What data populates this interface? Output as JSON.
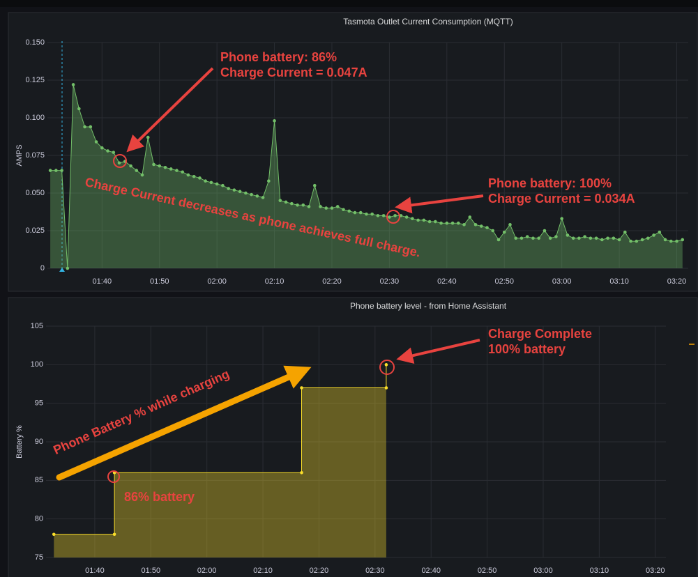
{
  "chart_data": [
    {
      "type": "line",
      "title": "Tasmota Outlet Current Consumption (MQTT)",
      "ylabel": "AMPS",
      "x": [
        91,
        92,
        93,
        94,
        95,
        96,
        97,
        98,
        99,
        100,
        101,
        102,
        103,
        104,
        105,
        106,
        107,
        108,
        109,
        110,
        111,
        112,
        113,
        114,
        115,
        116,
        117,
        118,
        119,
        120,
        121,
        122,
        123,
        124,
        125,
        126,
        127,
        128,
        129,
        130,
        131,
        132,
        133,
        134,
        135,
        136,
        137,
        138,
        139,
        140,
        141,
        142,
        143,
        144,
        145,
        146,
        147,
        148,
        149,
        150,
        151,
        152,
        153,
        154,
        155,
        156,
        157,
        158,
        159,
        160,
        161,
        162,
        163,
        164,
        165,
        166,
        167,
        168,
        169,
        170,
        171,
        172,
        173,
        174,
        175,
        176,
        177,
        178,
        179,
        180,
        181,
        182,
        183,
        184,
        185,
        186,
        187,
        188,
        189,
        190,
        191,
        192,
        193,
        194,
        195,
        196,
        197,
        198,
        199,
        200,
        201
      ],
      "values": [
        0.065,
        0.065,
        0.065,
        0,
        0.122,
        0.106,
        0.094,
        0.094,
        0.084,
        0.08,
        0.078,
        0.077,
        0.07,
        0.071,
        0.068,
        0.065,
        0.062,
        0.087,
        0.069,
        0.068,
        0.067,
        0.066,
        0.065,
        0.064,
        0.062,
        0.061,
        0.06,
        0.058,
        0.057,
        0.056,
        0.055,
        0.053,
        0.052,
        0.051,
        0.05,
        0.049,
        0.048,
        0.047,
        0.058,
        0.098,
        0.045,
        0.044,
        0.043,
        0.042,
        0.042,
        0.041,
        0.055,
        0.041,
        0.04,
        0.04,
        0.041,
        0.039,
        0.038,
        0.037,
        0.037,
        0.036,
        0.036,
        0.035,
        0.035,
        0.034,
        0.035,
        0.035,
        0.034,
        0.033,
        0.032,
        0.032,
        0.031,
        0.031,
        0.03,
        0.03,
        0.03,
        0.03,
        0.029,
        0.034,
        0.029,
        0.028,
        0.027,
        0.025,
        0.019,
        0.024,
        0.029,
        0.02,
        0.02,
        0.021,
        0.02,
        0.02,
        0.025,
        0.02,
        0.021,
        0.033,
        0.022,
        0.02,
        0.02,
        0.021,
        0.02,
        0.02,
        0.019,
        0.02,
        0.02,
        0.019,
        0.024,
        0.018,
        0.018,
        0.019,
        0.02,
        0.022,
        0.024,
        0.019,
        0.018,
        0.018,
        0.019
      ],
      "color": "#73bf69",
      "area": true,
      "grid": true,
      "xlim": [
        90.5,
        202
      ],
      "xticks": [
        {
          "value": 100,
          "label": "01:40"
        },
        {
          "value": 110,
          "label": "01:50"
        },
        {
          "value": 120,
          "label": "02:00"
        },
        {
          "value": 130,
          "label": "02:10"
        },
        {
          "value": 140,
          "label": "02:20"
        },
        {
          "value": 150,
          "label": "02:30"
        },
        {
          "value": 160,
          "label": "02:40"
        },
        {
          "value": 170,
          "label": "02:50"
        },
        {
          "value": 180,
          "label": "03:00"
        },
        {
          "value": 190,
          "label": "03:10"
        },
        {
          "value": 200,
          "label": "03:20"
        }
      ],
      "ylim": [
        0,
        0.15
      ],
      "yticks": [
        0,
        0.025,
        {
          "value": 0.05,
          "label": "0.050"
        },
        0.075,
        {
          "value": 0.1,
          "label": "0.100"
        },
        0.125,
        {
          "value": 0.15,
          "label": "0.150"
        }
      ],
      "annotations": [
        "Phone battery:  86%",
        "Charge Current = 0.047A",
        "Phone battery:  100%",
        "Charge Current = 0.034A",
        "Charge Current decreases as phone achieves full charge."
      ]
    },
    {
      "type": "line",
      "title": "Phone battery level - from Home Assistant",
      "ylabel": "Battery %",
      "x": [
        92.7,
        103.5,
        103.5,
        136.9,
        136.9,
        152,
        152
      ],
      "values": [
        78,
        78,
        86,
        86,
        97,
        97,
        100
      ],
      "color": "#fade2a",
      "area": true,
      "grid": true,
      "xlim": [
        91.3,
        201.9
      ],
      "xticks": [
        {
          "value": 100,
          "label": "01:40"
        },
        {
          "value": 110,
          "label": "01:50"
        },
        {
          "value": 120,
          "label": "02:00"
        },
        {
          "value": 130,
          "label": "02:10"
        },
        {
          "value": 140,
          "label": "02:20"
        },
        {
          "value": 150,
          "label": "02:30"
        },
        {
          "value": 160,
          "label": "02:40"
        },
        {
          "value": 170,
          "label": "02:50"
        },
        {
          "value": 180,
          "label": "03:00"
        },
        {
          "value": 190,
          "label": "03:10"
        },
        {
          "value": 200,
          "label": "03:20"
        }
      ],
      "ylim": [
        75,
        105
      ],
      "yticks": [
        75,
        80,
        85,
        90,
        95,
        100,
        105
      ],
      "annotations": [
        "Charge Complete",
        "100% battery",
        "Phone Battery % while charging",
        "86% battery"
      ]
    }
  ]
}
